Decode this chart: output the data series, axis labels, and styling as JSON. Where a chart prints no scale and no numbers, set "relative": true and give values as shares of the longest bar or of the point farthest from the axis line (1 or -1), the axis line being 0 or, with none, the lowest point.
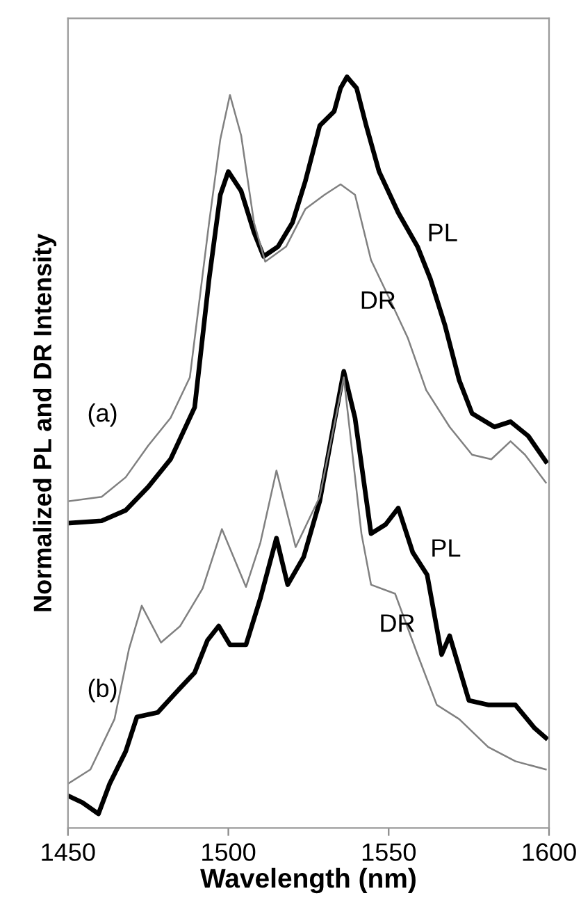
{
  "chart_data": {
    "type": "line",
    "relative": true,
    "xlabel": "Wavelength (nm)",
    "ylabel": "Normalized PL and DR Intensity",
    "xlim": [
      1450,
      1600
    ],
    "xticks": [
      1450,
      1500,
      1550,
      1600
    ],
    "tick_labels": "x",
    "grid": false,
    "legend": false,
    "annotations": [
      "(a)",
      "(b)"
    ],
    "series": [
      {
        "name": "PL",
        "color": "#000000",
        "x": [
          1450,
          1460.5,
          1468,
          1475,
          1482,
          1489.5,
          1494,
          1497.5,
          1500,
          1504,
          1508,
          1511,
          1515.5,
          1520,
          1524,
          1528.5,
          1533,
          1535,
          1537,
          1540,
          1543,
          1547,
          1553,
          1559,
          1563,
          1567.5,
          1572,
          1576,
          1583,
          1588,
          1593.5,
          1599
        ],
        "values": [
          0.406,
          0.409,
          0.423,
          0.454,
          0.491,
          0.56,
          0.731,
          0.843,
          0.874,
          0.848,
          0.793,
          0.761,
          0.774,
          0.806,
          0.861,
          0.935,
          0.954,
          0.985,
          1.0,
          0.985,
          0.935,
          0.874,
          0.819,
          0.774,
          0.731,
          0.67,
          0.596,
          0.552,
          0.534,
          0.541,
          0.522,
          0.488
        ]
      },
      {
        "name": "DR",
        "color": "#808080",
        "x": [
          1450,
          1460.5,
          1468,
          1475,
          1482,
          1488,
          1494,
          1497.5,
          1500.5,
          1504,
          1508,
          1511.5,
          1518,
          1524,
          1530,
          1535,
          1539.5,
          1544.5,
          1550,
          1556,
          1561.7,
          1569,
          1576,
          1582,
          1588,
          1592.5,
          1599
        ],
        "values": [
          0.435,
          0.441,
          0.467,
          0.509,
          0.546,
          0.6,
          0.806,
          0.917,
          0.976,
          0.922,
          0.806,
          0.754,
          0.774,
          0.824,
          0.843,
          0.857,
          0.843,
          0.756,
          0.707,
          0.652,
          0.583,
          0.534,
          0.497,
          0.491,
          0.515,
          0.497,
          0.46
        ]
      },
      {
        "name": "PL",
        "color": "#000000",
        "x": [
          1450,
          1454.5,
          1459.5,
          1463,
          1468,
          1471.5,
          1478,
          1484,
          1489.5,
          1493.5,
          1497,
          1500.5,
          1505.5,
          1510,
          1515,
          1518.5,
          1523.5,
          1528.5,
          1533,
          1536,
          1539.5,
          1544.5,
          1549,
          1553,
          1557.5,
          1562,
          1566.5,
          1569,
          1575,
          1581,
          1589.5,
          1595.5,
          1599
        ],
        "values": [
          0.043,
          0.034,
          0.019,
          0.059,
          0.102,
          0.148,
          0.154,
          0.182,
          0.207,
          0.25,
          0.269,
          0.244,
          0.244,
          0.306,
          0.386,
          0.324,
          0.361,
          0.435,
          0.54,
          0.608,
          0.546,
          0.392,
          0.404,
          0.426,
          0.367,
          0.337,
          0.231,
          0.256,
          0.17,
          0.164,
          0.164,
          0.133,
          0.12
        ]
      },
      {
        "name": "DR",
        "color": "#808080",
        "x": [
          1450,
          1457,
          1464.5,
          1469,
          1473,
          1479,
          1485,
          1492,
          1498,
          1505.5,
          1510,
          1515,
          1521,
          1528.5,
          1536,
          1541.5,
          1544.5,
          1552,
          1559,
          1565,
          1572,
          1581,
          1589.5,
          1599
        ],
        "values": [
          0.059,
          0.078,
          0.145,
          0.238,
          0.296,
          0.247,
          0.269,
          0.319,
          0.398,
          0.321,
          0.38,
          0.476,
          0.374,
          0.441,
          0.6,
          0.392,
          0.324,
          0.312,
          0.231,
          0.164,
          0.145,
          0.108,
          0.089,
          0.078
        ]
      }
    ]
  }
}
